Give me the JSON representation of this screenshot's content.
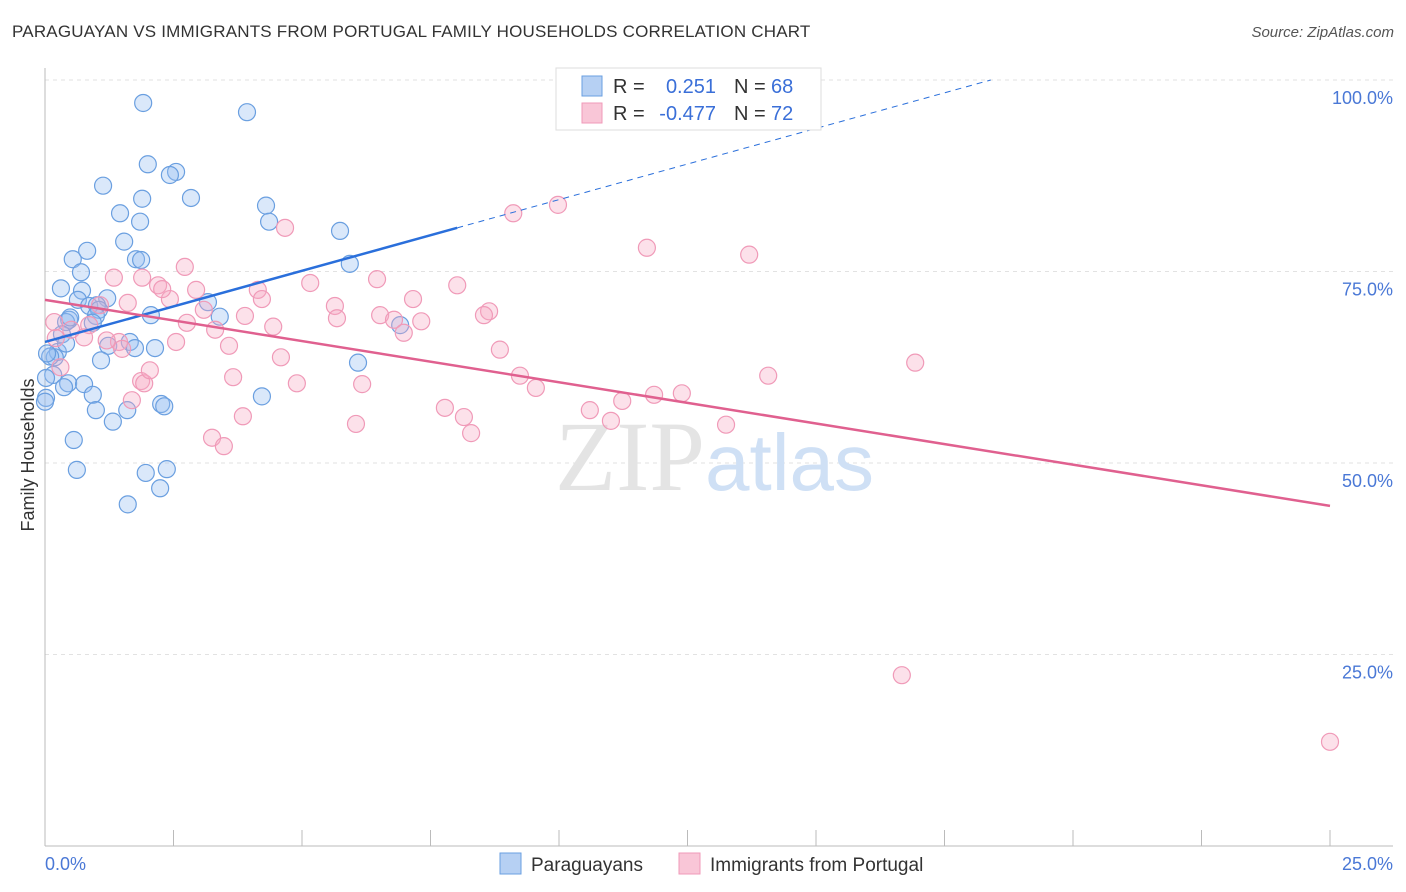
{
  "header": {
    "title": "PARAGUAYAN VS IMMIGRANTS FROM PORTUGAL FAMILY HOUSEHOLDS CORRELATION CHART",
    "source": "Source: ZipAtlas.com"
  },
  "watermark": "ZIPatlas",
  "chart_data": {
    "type": "scatter",
    "title": "PARAGUAYAN VS IMMIGRANTS FROM PORTUGAL FAMILY HOUSEHOLDS CORRELATION CHART",
    "xlabel": "",
    "ylabel": "Family Households",
    "xlim": [
      0,
      25
    ],
    "ylim": [
      0,
      100
    ],
    "x_tick_labels": [
      "0.0%",
      "25.0%"
    ],
    "y_ticks": [
      100,
      75,
      50,
      25
    ],
    "y_tick_labels": [
      "100.0%",
      "75.0%",
      "50.0%",
      "25.0%"
    ],
    "grid": true,
    "legend": {
      "placement": "top-center",
      "r_label": "R =",
      "n_label": "N ="
    },
    "series": [
      {
        "name": "Paraguayans",
        "color": "#6a9fe0",
        "line_color": "#2a6fdb",
        "r": "0.251",
        "n": "68",
        "trend": {
          "x": [
            0,
            8.02
          ],
          "y": [
            65.8,
            80.7
          ],
          "dashed_to": [
            18.4,
            100
          ]
        },
        "points": [
          [
            1.91,
            97.0
          ],
          [
            3.93,
            95.8
          ],
          [
            2.0,
            89.0
          ],
          [
            2.55,
            88.0
          ],
          [
            2.43,
            87.6
          ],
          [
            1.13,
            86.2
          ],
          [
            2.84,
            84.6
          ],
          [
            1.89,
            84.5
          ],
          [
            4.3,
            83.6
          ],
          [
            1.46,
            82.6
          ],
          [
            1.85,
            81.5
          ],
          [
            4.36,
            81.5
          ],
          [
            5.74,
            80.3
          ],
          [
            1.54,
            78.9
          ],
          [
            0.82,
            77.7
          ],
          [
            0.54,
            76.6
          ],
          [
            1.77,
            76.6
          ],
          [
            1.87,
            76.5
          ],
          [
            0.7,
            74.9
          ],
          [
            5.93,
            76.0
          ],
          [
            0.31,
            72.8
          ],
          [
            0.72,
            72.5
          ],
          [
            1.21,
            71.5
          ],
          [
            0.64,
            71.3
          ],
          [
            3.17,
            71.0
          ],
          [
            0.86,
            70.5
          ],
          [
            1.01,
            70.6
          ],
          [
            1.05,
            70.0
          ],
          [
            0.99,
            69.2
          ],
          [
            2.06,
            69.3
          ],
          [
            3.4,
            69.1
          ],
          [
            0.47,
            68.7
          ],
          [
            0.41,
            68.4
          ],
          [
            0.33,
            66.8
          ],
          [
            0.93,
            68.3
          ],
          [
            1.65,
            65.8
          ],
          [
            1.23,
            65.3
          ],
          [
            2.14,
            65.0
          ],
          [
            0.25,
            64.5
          ],
          [
            0.19,
            63.8
          ],
          [
            1.09,
            63.4
          ],
          [
            6.09,
            63.1
          ],
          [
            0.16,
            61.5
          ],
          [
            0.02,
            61.1
          ],
          [
            0.45,
            60.4
          ],
          [
            0.37,
            59.9
          ],
          [
            0.76,
            60.3
          ],
          [
            0.93,
            58.9
          ],
          [
            4.22,
            58.7
          ],
          [
            0.02,
            58.5
          ],
          [
            1.6,
            56.9
          ],
          [
            0.99,
            56.9
          ],
          [
            2.26,
            57.7
          ],
          [
            2.32,
            57.4
          ],
          [
            1.32,
            55.4
          ],
          [
            0.56,
            53.0
          ],
          [
            1.96,
            48.7
          ],
          [
            2.37,
            49.2
          ],
          [
            0.62,
            49.1
          ],
          [
            2.24,
            46.7
          ],
          [
            1.61,
            44.6
          ],
          [
            6.91,
            68.0
          ],
          [
            0.1,
            63.9
          ],
          [
            0.41,
            65.6
          ],
          [
            0.49,
            69.0
          ],
          [
            0.04,
            64.3
          ],
          [
            1.75,
            65.0
          ],
          [
            0.0,
            58.0
          ]
        ]
      },
      {
        "name": "Immigrants from Portugal",
        "color": "#f09ab8",
        "line_color": "#e0608f",
        "r": "-0.477",
        "n": "72",
        "trend": {
          "x": [
            0,
            25
          ],
          "y": [
            71.3,
            44.4
          ]
        },
        "points": [
          [
            1.89,
            74.2
          ],
          [
            1.34,
            74.2
          ],
          [
            2.72,
            75.6
          ],
          [
            2.2,
            73.2
          ],
          [
            2.43,
            71.4
          ],
          [
            2.28,
            72.7
          ],
          [
            4.67,
            80.7
          ],
          [
            4.14,
            72.6
          ],
          [
            4.22,
            71.4
          ],
          [
            2.94,
            72.6
          ],
          [
            5.16,
            73.5
          ],
          [
            6.46,
            74.0
          ],
          [
            8.02,
            73.2
          ],
          [
            7.16,
            71.4
          ],
          [
            5.64,
            70.5
          ],
          [
            5.68,
            68.9
          ],
          [
            3.89,
            69.2
          ],
          [
            3.09,
            70.0
          ],
          [
            2.76,
            68.3
          ],
          [
            1.61,
            70.9
          ],
          [
            1.07,
            70.6
          ],
          [
            0.86,
            68.0
          ],
          [
            0.51,
            67.4
          ],
          [
            0.18,
            68.4
          ],
          [
            0.21,
            66.3
          ],
          [
            0.76,
            66.4
          ],
          [
            1.44,
            65.8
          ],
          [
            1.5,
            64.9
          ],
          [
            2.55,
            65.8
          ],
          [
            3.31,
            67.4
          ],
          [
            3.58,
            65.3
          ],
          [
            4.44,
            67.8
          ],
          [
            4.59,
            63.8
          ],
          [
            6.52,
            69.3
          ],
          [
            6.79,
            68.7
          ],
          [
            7.32,
            68.5
          ],
          [
            6.98,
            67.0
          ],
          [
            8.64,
            69.8
          ],
          [
            8.54,
            69.3
          ],
          [
            8.85,
            64.8
          ],
          [
            9.11,
            82.6
          ],
          [
            9.98,
            83.7
          ],
          [
            11.71,
            78.1
          ],
          [
            13.7,
            77.2
          ],
          [
            16.93,
            63.1
          ],
          [
            14.07,
            61.4
          ],
          [
            3.66,
            61.2
          ],
          [
            4.9,
            60.4
          ],
          [
            6.17,
            60.3
          ],
          [
            9.24,
            61.4
          ],
          [
            9.55,
            59.8
          ],
          [
            7.78,
            57.2
          ],
          [
            8.15,
            56.0
          ],
          [
            8.29,
            53.9
          ],
          [
            10.6,
            56.9
          ],
          [
            11.23,
            58.1
          ],
          [
            11.01,
            55.5
          ],
          [
            11.85,
            58.9
          ],
          [
            12.39,
            59.1
          ],
          [
            13.25,
            55.0
          ],
          [
            6.05,
            55.1
          ],
          [
            3.85,
            56.1
          ],
          [
            3.25,
            53.3
          ],
          [
            3.48,
            52.2
          ],
          [
            1.87,
            60.7
          ],
          [
            1.93,
            60.4
          ],
          [
            1.69,
            58.2
          ],
          [
            2.04,
            62.1
          ],
          [
            16.67,
            22.3
          ],
          [
            25.0,
            13.6
          ],
          [
            0.3,
            62.5
          ],
          [
            1.2,
            66.0
          ]
        ]
      }
    ]
  }
}
